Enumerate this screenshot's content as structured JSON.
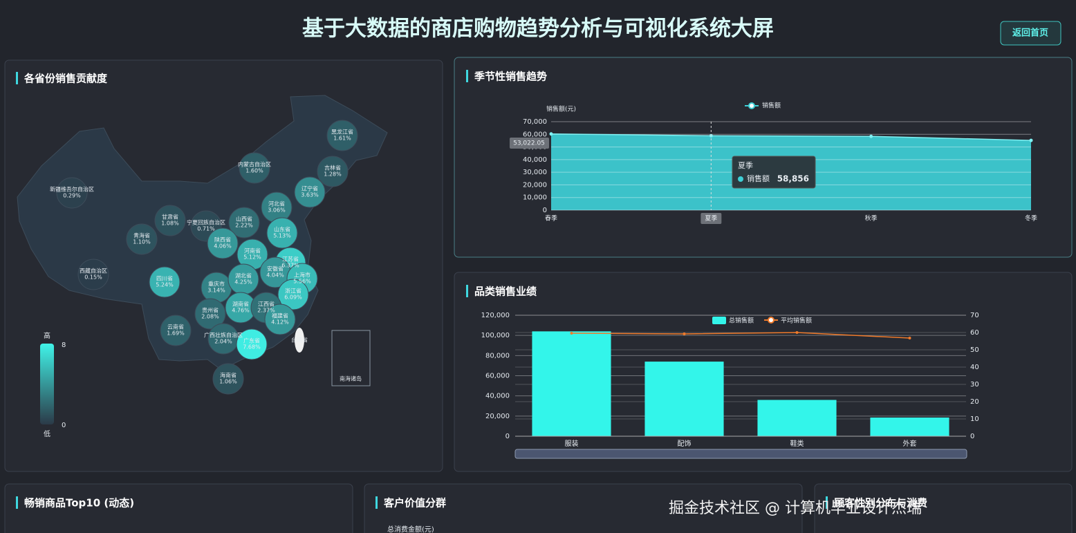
{
  "header": {
    "title": "基于大数据的商店购物趋势分析与可视化系统大屏",
    "button": "返回首页"
  },
  "chart_data": [
    {
      "type": "map",
      "title": "各省份销售贡献度",
      "regions": [
        "黑龙江省",
        "吉林省",
        "辽宁省",
        "内蒙古自治区",
        "新疆维吾尔自治区",
        "甘肃省",
        "宁夏回族自治区",
        "山西省",
        "河北省",
        "山东省",
        "青海省",
        "陕西省",
        "河南省",
        "江苏省",
        "西藏自治区",
        "四川省",
        "重庆市",
        "湖北省",
        "安徽省",
        "上海市",
        "浙江省",
        "湖南省",
        "江西省",
        "贵州省",
        "云南省",
        "广西壮族自治区",
        "福建省",
        "广东省",
        "海南省"
      ],
      "values": [
        1.61,
        1.28,
        3.63,
        1.6,
        0.29,
        1.08,
        0.71,
        2.22,
        3.06,
        5.13,
        1.1,
        4.06,
        5.12,
        6.37,
        0.15,
        5.24,
        3.14,
        4.25,
        4.04,
        5.56,
        6.09,
        4.76,
        2.37,
        2.08,
        1.69,
        2.04,
        4.12,
        7.68,
        1.06
      ],
      "value_labels": [
        "1.61%",
        "1.28%",
        "3.63%",
        "1.60%",
        "0.29%",
        "1.08%",
        "0.71%",
        "2.22%",
        "3.06%",
        "5.13%",
        "1.10%",
        "4.06%",
        "5.12%",
        "6.37%",
        "0.15%",
        "5.24%",
        "3.14%",
        "4.25%",
        "4.04%",
        "5.56%",
        "6.09%",
        "4.76%",
        "2.37%",
        "2.08%",
        "1.69%",
        "2.04%",
        "4.12%",
        "7.68%",
        "1.06%"
      ],
      "other_labels": [
        "台湾省",
        "南海诸岛"
      ],
      "visual_map": {
        "min": 0,
        "max": 8,
        "text": [
          "高",
          "低"
        ]
      },
      "color_range": [
        "#2b3a48",
        "#40f3e8"
      ]
    },
    {
      "type": "line",
      "title": "季节性销售趋势",
      "y_label": "销售额(元)",
      "categories": [
        "春季",
        "夏季",
        "秋季",
        "冬季"
      ],
      "series": [
        {
          "name": "销售额",
          "color": "#3ecfd6",
          "values": [
            60300,
            58856,
            58400,
            55200
          ],
          "value_labels": [
            null,
            "58,856",
            null,
            null
          ]
        }
      ],
      "ylim": [
        0,
        70000
      ],
      "yticks": [
        0,
        {
          "value": 10000,
          "label": "10,000"
        },
        {
          "value": 20000,
          "label": "20,000"
        },
        {
          "value": 30000,
          "label": "30,000"
        },
        {
          "value": 40000,
          "label": "40,000"
        },
        {
          "value": 50000,
          "label": "50,000"
        },
        {
          "value": 60000,
          "label": "60,000"
        },
        {
          "value": 70000,
          "label": "70,000"
        }
      ],
      "grid": true,
      "pointer": {
        "value": 53022.05,
        "label": "53,022.05"
      }
    },
    {
      "type": "bar",
      "title": "品类销售业绩",
      "categories": [
        "服装",
        "配饰",
        "鞋类",
        "外套"
      ],
      "series": [
        {
          "name": "总销售额",
          "type": "bar",
          "color": "#33f5ea",
          "values": [
            104000,
            74000,
            36000,
            18500
          ]
        },
        {
          "name": "平均销售额",
          "type": "line",
          "axis": "y2",
          "color": "#f07a2a",
          "values": [
            59.6,
            59.2,
            60,
            56.8
          ]
        }
      ],
      "ylim": [
        0,
        120000
      ],
      "yticks": [
        0,
        {
          "value": 20000,
          "label": "20,000"
        },
        {
          "value": 40000,
          "label": "40,000"
        },
        {
          "value": 60000,
          "label": "60,000"
        },
        {
          "value": 80000,
          "label": "80,000"
        },
        {
          "value": 100000,
          "label": "100,000"
        },
        {
          "value": 120000,
          "label": "120,000"
        }
      ],
      "y2lim": [
        0,
        70
      ],
      "y2ticks": [
        0,
        10,
        20,
        30,
        40,
        50,
        60,
        70
      ],
      "grid": true
    }
  ],
  "panels": [
    {
      "title": "畅销商品Top10 (动态)"
    },
    {
      "title": "客户价值分群",
      "y_label": "总消费金额(元)"
    },
    {
      "title": "顾客性别分布与消费"
    }
  ],
  "watermark": "掘金技术社区 @ 计算机毕业设计杰瑞"
}
